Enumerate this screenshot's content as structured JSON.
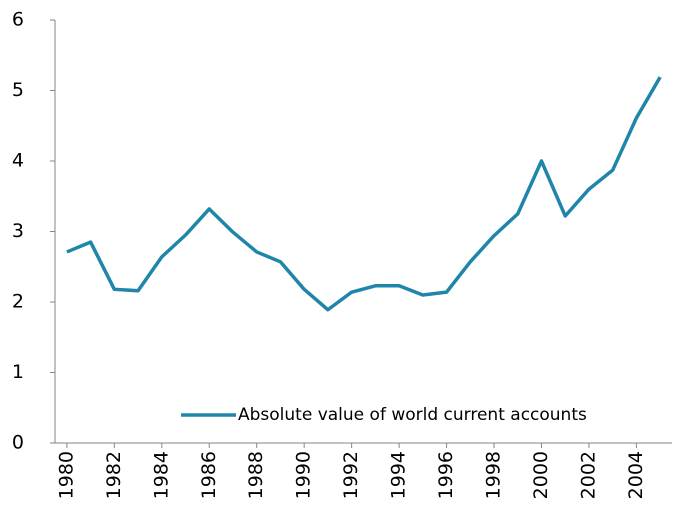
{
  "chart_data": {
    "type": "line",
    "x": [
      1980,
      1981,
      1982,
      1983,
      1984,
      1985,
      1986,
      1987,
      1988,
      1989,
      1990,
      1991,
      1992,
      1993,
      1994,
      1995,
      1996,
      1997,
      1998,
      1999,
      2000,
      2001,
      2002,
      2003,
      2004,
      2005
    ],
    "series": [
      {
        "name": "Absolute value of world current accounts",
        "color": "#1f86aa",
        "values": [
          2.71,
          2.85,
          2.18,
          2.16,
          2.64,
          2.95,
          3.32,
          2.99,
          2.71,
          2.57,
          2.18,
          1.89,
          2.14,
          2.23,
          2.23,
          2.1,
          2.14,
          2.57,
          2.94,
          3.25,
          4.0,
          3.22,
          3.6,
          3.87,
          4.61,
          5.19
        ]
      }
    ],
    "xlim": [
      1979.5,
      2005.5
    ],
    "xticks": [
      1980,
      1982,
      1984,
      1986,
      1988,
      1990,
      1992,
      1994,
      1996,
      1998,
      2000,
      2002,
      2004
    ],
    "ylim": [
      0,
      6
    ],
    "yticks": [
      0,
      1,
      2,
      3,
      4,
      5,
      6
    ],
    "grid": false,
    "legend": "lower right"
  }
}
